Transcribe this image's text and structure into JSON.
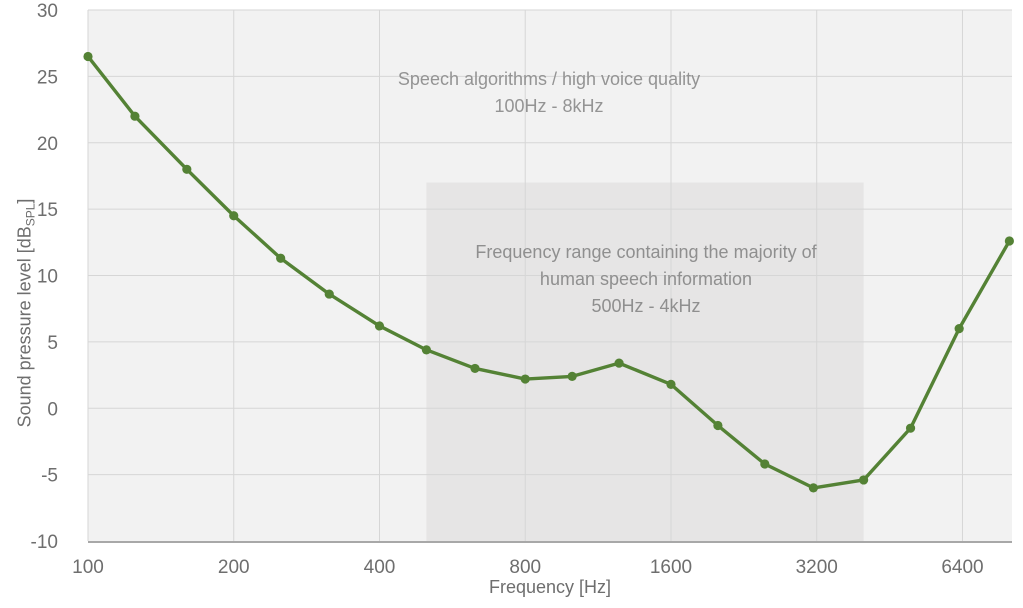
{
  "chart_data": {
    "type": "line",
    "title": "",
    "x": [
      100,
      125,
      160,
      200,
      250,
      315,
      400,
      500,
      630,
      800,
      1000,
      1250,
      1600,
      2000,
      2500,
      3150,
      4000,
      5000,
      6300,
      8000
    ],
    "y": [
      26.5,
      22.0,
      18.0,
      14.5,
      11.3,
      8.6,
      6.2,
      4.4,
      3.0,
      2.2,
      2.4,
      3.4,
      1.8,
      -1.3,
      -4.2,
      -6.0,
      -5.4,
      -1.5,
      6.0,
      12.6
    ],
    "series_name": "Sound pressure level",
    "xlabel": "Frequency [Hz]",
    "ylabel": {
      "text": "Sound pressure level [dB",
      "subscript": "SPL",
      "suffix": "]"
    },
    "x_scale": "log2",
    "xlim": [
      100,
      8100
    ],
    "ylim": [
      -10,
      30
    ],
    "x_tick_values": [
      100,
      200,
      400,
      800,
      1600,
      3200,
      6400
    ],
    "x_tick_labels": [
      "100",
      "200",
      "400",
      "800",
      "1600",
      "3200",
      "6400"
    ],
    "y_tick_values": [
      30,
      25,
      20,
      15,
      10,
      5,
      0,
      -5,
      -10
    ],
    "y_tick_labels": [
      "30",
      "25",
      "20",
      "15",
      "10",
      "5",
      "0",
      "-5",
      "-10"
    ],
    "grid": true,
    "legend": "none",
    "line_color": "#548235",
    "marker": "circle",
    "shaded_region": {
      "x_from": 500,
      "x_to": 4000,
      "y_from": -10,
      "y_to": 17,
      "color": "#e6e5e5"
    },
    "annotations": [
      {
        "lines": [
          "Speech algorithms / high voice quality",
          "100Hz - 8kHz"
        ],
        "color": "#949494"
      },
      {
        "lines": [
          "Frequency range containing the majority of",
          "human speech information",
          "500Hz - 4kHz"
        ],
        "color": "#8f8f8f"
      }
    ],
    "colors": {
      "plot_bg": "#f2f2f2",
      "gridline": "#d6d6d6",
      "axis_line": "#a8a8a8",
      "tick_label": "#6e6e6e"
    }
  }
}
